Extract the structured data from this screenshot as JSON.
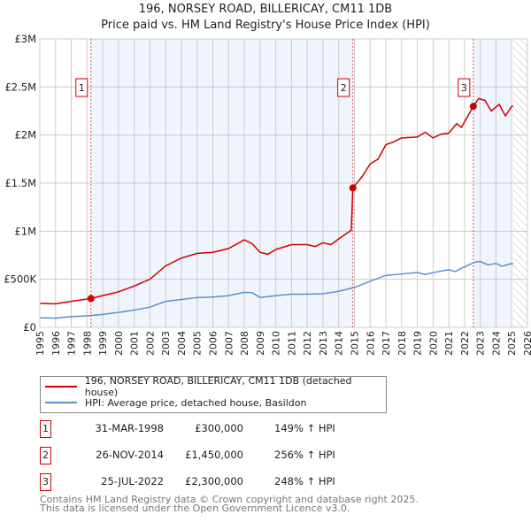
{
  "chart_data": {
    "type": "line",
    "title": "196, NORSEY ROAD, BILLERICAY, CM11 1DB",
    "subtitle": "Price paid vs. HM Land Registry's House Price Index (HPI)",
    "xlim": [
      1995,
      2026
    ],
    "ylim": [
      0,
      3000000
    ],
    "x_ticks": [
      "1995",
      "1996",
      "1997",
      "1998",
      "1999",
      "2000",
      "2001",
      "2002",
      "2003",
      "2004",
      "2005",
      "2006",
      "2007",
      "2008",
      "2009",
      "2010",
      "2011",
      "2012",
      "2013",
      "2014",
      "2015",
      "2016",
      "2017",
      "2018",
      "2019",
      "2020",
      "2021",
      "2022",
      "2023",
      "2024",
      "2025",
      "2026"
    ],
    "y_ticks": [
      {
        "v": 0,
        "label": "£0"
      },
      {
        "v": 500000,
        "label": "£500K"
      },
      {
        "v": 1000000,
        "label": "£1M"
      },
      {
        "v": 1500000,
        "label": "£1.5M"
      },
      {
        "v": 2000000,
        "label": "£2M"
      },
      {
        "v": 2500000,
        "label": "£2.5M"
      },
      {
        "v": 3000000,
        "label": "£3M"
      }
    ],
    "grid": true,
    "series": [
      {
        "name": "196, NORSEY ROAD, BILLERICAY, CM11 1DB (detached house)",
        "color": "#cc0000",
        "points": [
          [
            1995,
            250000
          ],
          [
            1996,
            245000
          ],
          [
            1997,
            270000
          ],
          [
            1998.25,
            300000
          ],
          [
            1999,
            330000
          ],
          [
            2000,
            370000
          ],
          [
            2001,
            430000
          ],
          [
            2002,
            500000
          ],
          [
            2003,
            640000
          ],
          [
            2004,
            720000
          ],
          [
            2005,
            770000
          ],
          [
            2006,
            780000
          ],
          [
            2007,
            820000
          ],
          [
            2008,
            910000
          ],
          [
            2008.5,
            870000
          ],
          [
            2009,
            780000
          ],
          [
            2009.5,
            760000
          ],
          [
            2010,
            810000
          ],
          [
            2011,
            860000
          ],
          [
            2012,
            860000
          ],
          [
            2012.5,
            840000
          ],
          [
            2013,
            880000
          ],
          [
            2013.5,
            860000
          ],
          [
            2014,
            920000
          ],
          [
            2014.8,
            1010000
          ],
          [
            2014.9,
            1450000
          ],
          [
            2015.5,
            1570000
          ],
          [
            2016,
            1700000
          ],
          [
            2016.5,
            1750000
          ],
          [
            2017,
            1900000
          ],
          [
            2017.5,
            1930000
          ],
          [
            2018,
            1970000
          ],
          [
            2019,
            1980000
          ],
          [
            2019.5,
            2030000
          ],
          [
            2020,
            1970000
          ],
          [
            2020.5,
            2010000
          ],
          [
            2021,
            2020000
          ],
          [
            2021.5,
            2120000
          ],
          [
            2021.8,
            2080000
          ],
          [
            2022.56,
            2300000
          ],
          [
            2022.9,
            2380000
          ],
          [
            2023.3,
            2360000
          ],
          [
            2023.7,
            2250000
          ],
          [
            2024.2,
            2320000
          ],
          [
            2024.6,
            2200000
          ],
          [
            2025,
            2300000
          ],
          [
            2025.1,
            2300000
          ]
        ]
      },
      {
        "name": "HPI: Average price, detached house, Basildon",
        "color": "#5b8fd4",
        "points": [
          [
            1995,
            100000
          ],
          [
            1996,
            95000
          ],
          [
            1997,
            112000
          ],
          [
            1998,
            120000
          ],
          [
            1999,
            135000
          ],
          [
            2000,
            155000
          ],
          [
            2001,
            180000
          ],
          [
            2002,
            210000
          ],
          [
            2003,
            270000
          ],
          [
            2004,
            290000
          ],
          [
            2005,
            310000
          ],
          [
            2006,
            315000
          ],
          [
            2007,
            330000
          ],
          [
            2008,
            365000
          ],
          [
            2008.5,
            360000
          ],
          [
            2009,
            310000
          ],
          [
            2010,
            330000
          ],
          [
            2011,
            345000
          ],
          [
            2012,
            345000
          ],
          [
            2013,
            350000
          ],
          [
            2014,
            375000
          ],
          [
            2015,
            415000
          ],
          [
            2016,
            480000
          ],
          [
            2017,
            540000
          ],
          [
            2018,
            555000
          ],
          [
            2019,
            570000
          ],
          [
            2019.5,
            550000
          ],
          [
            2020,
            570000
          ],
          [
            2021,
            600000
          ],
          [
            2021.4,
            580000
          ],
          [
            2022,
            630000
          ],
          [
            2022.7,
            680000
          ],
          [
            2023,
            685000
          ],
          [
            2023.5,
            650000
          ],
          [
            2024,
            665000
          ],
          [
            2024.4,
            635000
          ],
          [
            2025,
            665000
          ],
          [
            2025.1,
            660000
          ]
        ]
      }
    ],
    "sales": [
      {
        "label": "1",
        "x": 1998.25,
        "y": 300000,
        "date": "31-MAR-1998",
        "price": "£300,000",
        "hpi": "149% ↑ HPI"
      },
      {
        "label": "2",
        "x": 2014.9,
        "y": 1450000,
        "date": "26-NOV-2014",
        "price": "£1,450,000",
        "hpi": "256% ↑ HPI"
      },
      {
        "label": "3",
        "x": 2022.56,
        "y": 2300000,
        "date": "25-JUL-2022",
        "price": "£2,300,000",
        "hpi": "248% ↑ HPI"
      }
    ],
    "shaded_ranges": [
      [
        1998.25,
        2014.9
      ],
      [
        2022.56,
        2025.0
      ]
    ],
    "forecast_hatch_from": 2025.1,
    "legend_position": "below"
  },
  "footer": {
    "line1": "Contains HM Land Registry data © Crown copyright and database right 2025.",
    "line2": "This data is licensed under the Open Government Licence v3.0."
  }
}
